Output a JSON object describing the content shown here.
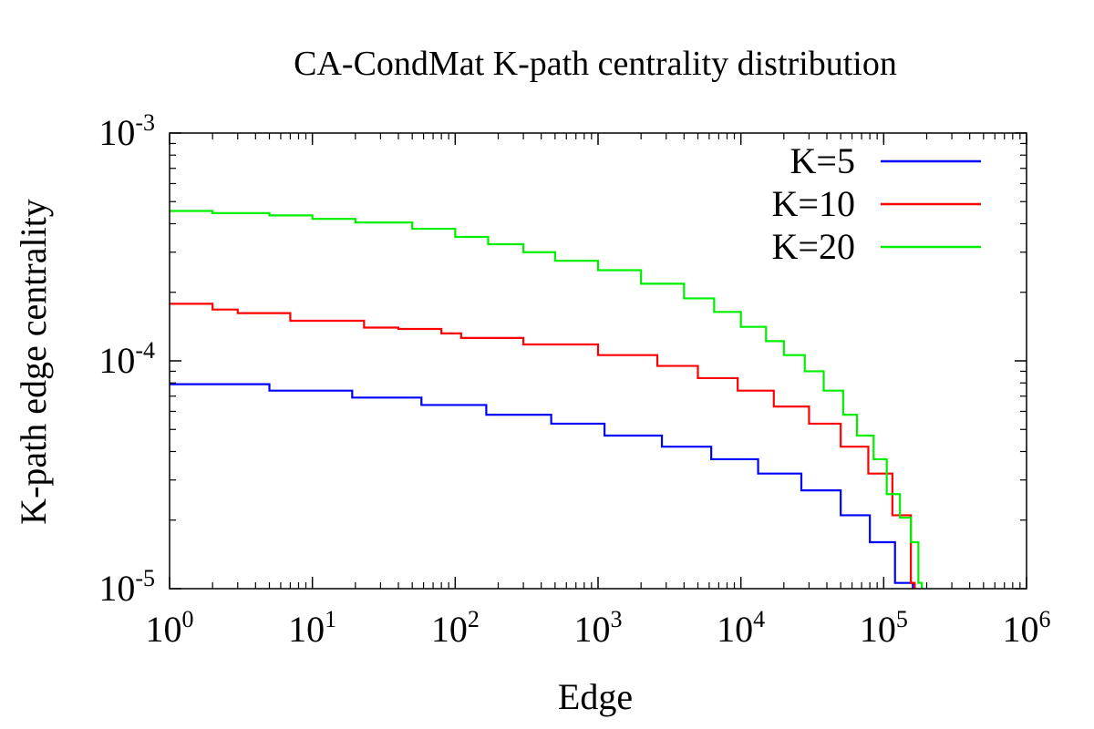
{
  "chart_data": {
    "type": "line",
    "title": "CA-CondMat K-path centrality distribution",
    "xlabel": "Edge",
    "ylabel": "K-path edge centrality",
    "xscale": "log",
    "yscale": "log",
    "xlim": [
      1,
      1000000
    ],
    "ylim": [
      1e-05,
      0.001
    ],
    "x_ticks": [
      {
        "value": 1,
        "base": "10",
        "exp": "0"
      },
      {
        "value": 10,
        "base": "10",
        "exp": "1"
      },
      {
        "value": 100,
        "base": "10",
        "exp": "2"
      },
      {
        "value": 1000,
        "base": "10",
        "exp": "3"
      },
      {
        "value": 10000,
        "base": "10",
        "exp": "4"
      },
      {
        "value": 100000,
        "base": "10",
        "exp": "5"
      },
      {
        "value": 1000000,
        "base": "10",
        "exp": "6"
      }
    ],
    "y_ticks": [
      {
        "value": 1e-05,
        "base": "10",
        "exp": "-5"
      },
      {
        "value": 0.0001,
        "base": "10",
        "exp": "-4"
      },
      {
        "value": 0.001,
        "base": "10",
        "exp": "-3"
      }
    ],
    "grid": false,
    "legend_position": "top-right",
    "series": [
      {
        "name": "K=5",
        "color": "#0000ff",
        "style": "step",
        "points": [
          [
            1,
            7.9e-05
          ],
          [
            4,
            7.9e-05
          ],
          [
            5,
            7.4e-05
          ],
          [
            18,
            7.4e-05
          ],
          [
            19,
            6.9e-05
          ],
          [
            57,
            6.9e-05
          ],
          [
            58,
            6.4e-05
          ],
          [
            160,
            6.4e-05
          ],
          [
            165,
            5.8e-05
          ],
          [
            460,
            5.8e-05
          ],
          [
            470,
            5.3e-05
          ],
          [
            1100,
            5.3e-05
          ],
          [
            1110,
            4.7e-05
          ],
          [
            2750,
            4.7e-05
          ],
          [
            2800,
            4.2e-05
          ],
          [
            6100,
            4.2e-05
          ],
          [
            6200,
            3.7e-05
          ],
          [
            13000,
            3.7e-05
          ],
          [
            13200,
            3.2e-05
          ],
          [
            26000,
            3.2e-05
          ],
          [
            26500,
            2.7e-05
          ],
          [
            49000,
            2.7e-05
          ],
          [
            50000,
            2.1e-05
          ],
          [
            79000,
            2.1e-05
          ],
          [
            80000,
            1.6e-05
          ],
          [
            118000,
            1.6e-05
          ],
          [
            120000,
            1.06e-05
          ],
          [
            155000,
            1.06e-05
          ],
          [
            160000,
            1e-05
          ]
        ]
      },
      {
        "name": "K=10",
        "color": "#ff0000",
        "style": "step",
        "points": [
          [
            1,
            0.000178
          ],
          [
            2,
            0.000168
          ],
          [
            3,
            0.000162
          ],
          [
            5,
            0.000162
          ],
          [
            7,
            0.00015
          ],
          [
            13,
            0.00015
          ],
          [
            23,
            0.00014
          ],
          [
            40,
            0.000138
          ],
          [
            80,
            0.000132
          ],
          [
            110,
            0.000126
          ],
          [
            250,
            0.000126
          ],
          [
            300,
            0.000118
          ],
          [
            600,
            0.000118
          ],
          [
            1000,
            0.000106
          ],
          [
            2000,
            0.000106
          ],
          [
            2600,
            9.5e-05
          ],
          [
            3700,
            9.5e-05
          ],
          [
            5000,
            8.4e-05
          ],
          [
            8000,
            8.4e-05
          ],
          [
            9500,
            7.4e-05
          ],
          [
            14000,
            7.4e-05
          ],
          [
            17000,
            6.3e-05
          ],
          [
            26000,
            6.3e-05
          ],
          [
            30000,
            5.3e-05
          ],
          [
            46000,
            5.3e-05
          ],
          [
            50000,
            4.2e-05
          ],
          [
            73000,
            4.2e-05
          ],
          [
            78000,
            3.2e-05
          ],
          [
            105000,
            3.2e-05
          ],
          [
            115000,
            2.1e-05
          ],
          [
            145000,
            2.1e-05
          ],
          [
            155000,
            1.06e-05
          ],
          [
            165000,
            1e-05
          ]
        ]
      },
      {
        "name": "K=20",
        "color": "#00ee00",
        "style": "step",
        "points": [
          [
            1,
            0.000455
          ],
          [
            2,
            0.000445
          ],
          [
            5,
            0.000435
          ],
          [
            10,
            0.00042
          ],
          [
            20,
            0.000405
          ],
          [
            50,
            0.00038
          ],
          [
            100,
            0.00035
          ],
          [
            170,
            0.000325
          ],
          [
            300,
            0.0003
          ],
          [
            500,
            0.000275
          ],
          [
            1000,
            0.00025
          ],
          [
            2000,
            0.000218
          ],
          [
            4000,
            0.000188
          ],
          [
            6500,
            0.000164
          ],
          [
            10000,
            0.000141
          ],
          [
            15000,
            0.000122
          ],
          [
            20000,
            0.000106
          ],
          [
            28000,
            9e-05
          ],
          [
            38000,
            7.4e-05
          ],
          [
            52000,
            5.8e-05
          ],
          [
            65000,
            4.7e-05
          ],
          [
            85000,
            3.7e-05
          ],
          [
            105000,
            2.6e-05
          ],
          [
            130000,
            2.05e-05
          ],
          [
            155000,
            1.6e-05
          ],
          [
            175000,
            1.06e-05
          ],
          [
            185000,
            1e-05
          ]
        ]
      }
    ]
  }
}
